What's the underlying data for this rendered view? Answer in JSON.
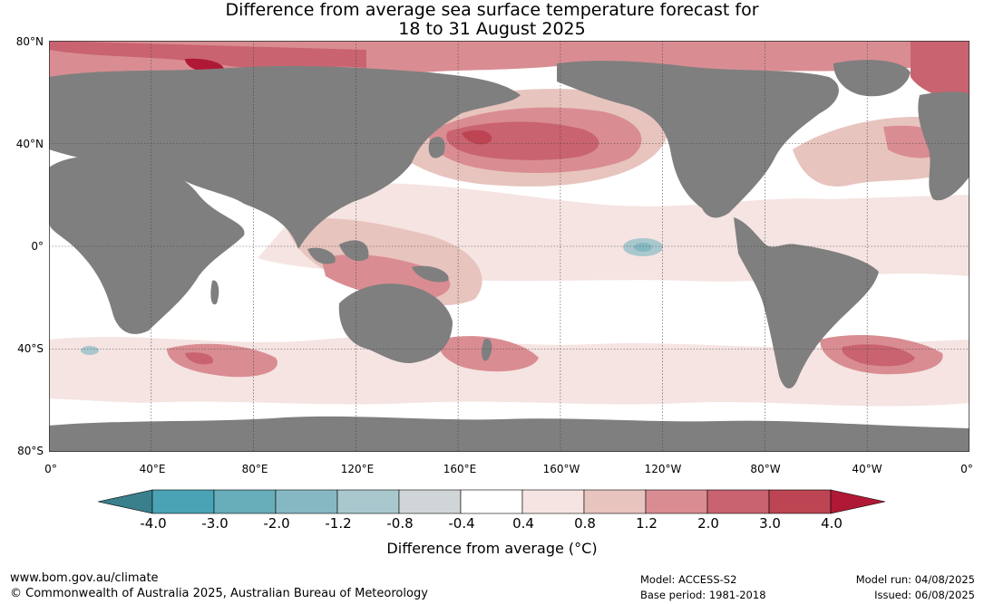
{
  "title_line1": "Difference from average sea surface temperature forecast for",
  "title_line2": "18 to 31 August 2025",
  "lat_labels": [
    "80°N",
    "40°N",
    "0°",
    "40°S",
    "80°S"
  ],
  "lon_labels": [
    "0°",
    "40°E",
    "80°E",
    "120°E",
    "160°E",
    "160°W",
    "120°W",
    "80°W",
    "40°W",
    "0°"
  ],
  "colorbar": {
    "ticks": [
      "-4.0",
      "-3.0",
      "-2.0",
      "-1.2",
      "-0.8",
      "-0.4",
      "0.4",
      "0.8",
      "1.2",
      "2.0",
      "3.0",
      "4.0"
    ],
    "colors": [
      "#4aa3b4",
      "#67adba",
      "#86b8c3",
      "#a9c8ce",
      "#d0d6d8",
      "#ffffff",
      "#f5e4e2",
      "#e8c4bf",
      "#d98d92",
      "#c9636f",
      "#bd4452"
    ],
    "under_color": "#3a7f8c",
    "over_color": "#b01935",
    "label": "Difference from average (°C)"
  },
  "map_colors": {
    "land": "#7f7f7f",
    "ocean": "#ffffff",
    "grid": "#444444"
  },
  "footer": {
    "website": "www.bom.gov.au/climate",
    "copyright": "© Commonwealth of Australia 2025, Australian Bureau of Meteorology",
    "model": "Model: ACCESS-S2",
    "base_period": "Base period: 1981-2018",
    "model_run": "Model run: 04/08/2025",
    "issued": "Issued: 06/08/2025"
  }
}
